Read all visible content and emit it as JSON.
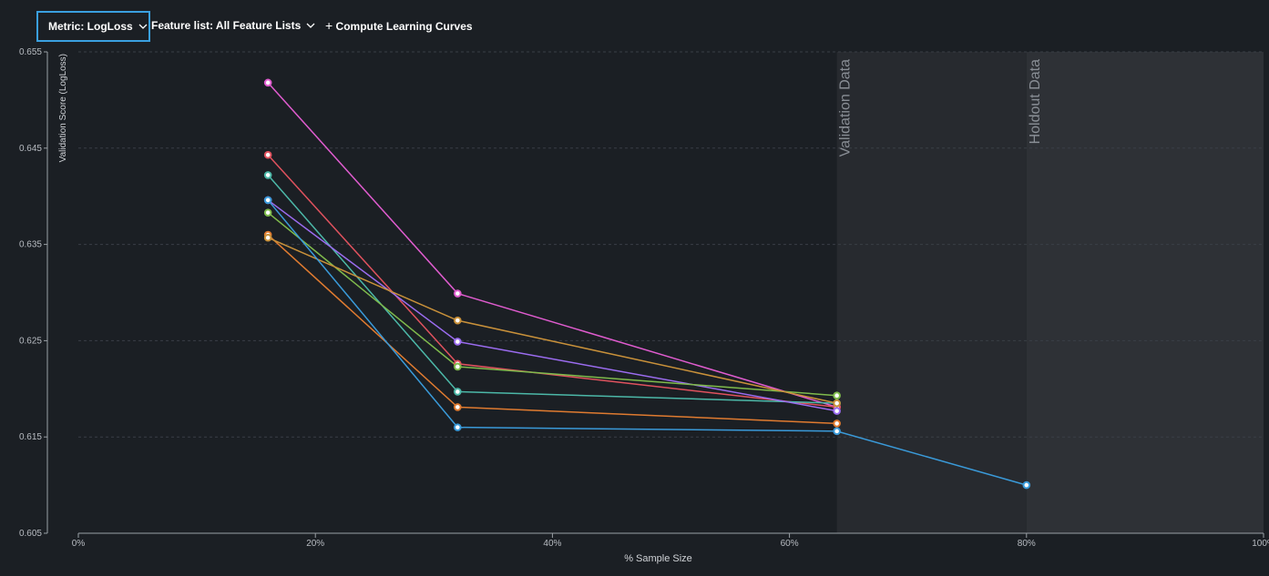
{
  "toolbar": {
    "metric": "Metric: LogLoss",
    "feature_list": "Feature list: All Feature Lists",
    "compute": "Compute Learning Curves"
  },
  "chart_data": {
    "type": "line",
    "y_label": "Validation Score (LogLoss)",
    "x_label": "% Sample Size",
    "xlim": [
      0,
      100
    ],
    "xticks": [
      {
        "value": 0,
        "label": "0%"
      },
      {
        "value": 20,
        "label": "20%"
      },
      {
        "value": 40,
        "label": "40%"
      },
      {
        "value": 60,
        "label": "60%"
      },
      {
        "value": 80,
        "label": "80%"
      },
      {
        "value": 100,
        "label": "100%"
      }
    ],
    "ylim": [
      0.605,
      0.655
    ],
    "yticks": [
      0.605,
      0.615,
      0.625,
      0.635,
      0.645,
      0.655
    ],
    "grid": true,
    "bands": [
      {
        "label": "Validation Data",
        "from": 64,
        "to": 80
      },
      {
        "label": "Holdout Data",
        "from": 80,
        "to": 100
      }
    ],
    "series": [
      {
        "color": "#e05ccf",
        "x": [
          16,
          32,
          64
        ],
        "values": [
          0.6518,
          0.6299,
          0.6181
        ]
      },
      {
        "color": "#e0525e",
        "x": [
          16,
          32,
          64
        ],
        "values": [
          0.6443,
          0.6226,
          0.6181
        ]
      },
      {
        "color": "#4cb8a8",
        "x": [
          16,
          32,
          64
        ],
        "values": [
          0.6422,
          0.6197,
          0.6185
        ]
      },
      {
        "color": "#9b6cf0",
        "x": [
          16,
          32,
          64
        ],
        "values": [
          0.6396,
          0.6249,
          0.6177
        ]
      },
      {
        "color": "#7fbb4c",
        "x": [
          16,
          32,
          64
        ],
        "values": [
          0.6383,
          0.6223,
          0.6193
        ]
      },
      {
        "color": "#e07b30",
        "x": [
          16,
          32,
          64
        ],
        "values": [
          0.636,
          0.6181,
          0.6164
        ]
      },
      {
        "color": "#c9913a",
        "x": [
          16,
          32,
          64
        ],
        "values": [
          0.6357,
          0.6271,
          0.6185
        ]
      },
      {
        "color": "#3a9ad9",
        "x": [
          16,
          32,
          64,
          80
        ],
        "values": [
          0.6396,
          0.616,
          0.6156,
          0.61
        ]
      }
    ]
  }
}
